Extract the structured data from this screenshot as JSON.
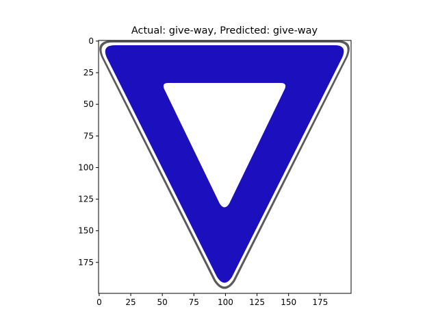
{
  "figure": {
    "title": "Actual: give-way, Predicted: give-way",
    "image_content": "give-way-sign",
    "image_size": [
      200,
      200
    ],
    "colors": {
      "sign_fill": "#1c10be",
      "border_white": "#ffffff",
      "border_dark": "#555555",
      "inner_triangle": "#ffffff",
      "background": "#ffffff"
    }
  },
  "axes": {
    "x_ticks": [
      {
        "value": 0,
        "label": "0"
      },
      {
        "value": 25,
        "label": "25"
      },
      {
        "value": 50,
        "label": "50"
      },
      {
        "value": 75,
        "label": "75"
      },
      {
        "value": 100,
        "label": "100"
      },
      {
        "value": 125,
        "label": "125"
      },
      {
        "value": 150,
        "label": "150"
      },
      {
        "value": 175,
        "label": "175"
      }
    ],
    "y_ticks": [
      {
        "value": 0,
        "label": "0"
      },
      {
        "value": 25,
        "label": "25"
      },
      {
        "value": 50,
        "label": "50"
      },
      {
        "value": 75,
        "label": "75"
      },
      {
        "value": 100,
        "label": "100"
      },
      {
        "value": 125,
        "label": "125"
      },
      {
        "value": 150,
        "label": "150"
      },
      {
        "value": 175,
        "label": "175"
      }
    ]
  }
}
